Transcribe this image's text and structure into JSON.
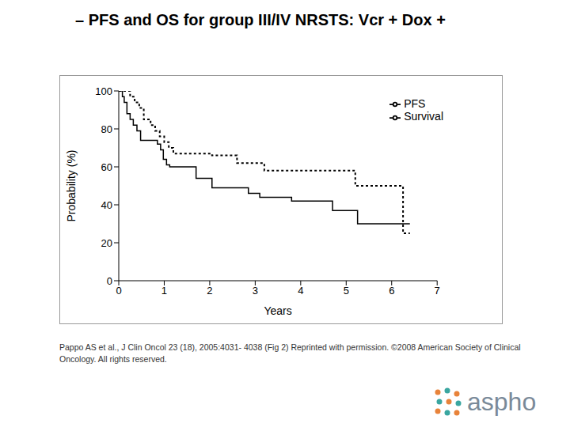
{
  "chart_data": {
    "type": "line",
    "title": "– PFS and OS for group III/IV NRSTS: Vcr + Dox +",
    "x_label": "Years",
    "y_label": "Probability (%)",
    "xlim": [
      0,
      7
    ],
    "xticks": [
      0,
      1,
      2,
      3,
      4,
      5,
      6,
      7
    ],
    "ylim": [
      0,
      100
    ],
    "yticks": [
      0,
      20,
      40,
      60,
      80,
      100
    ],
    "grid": false,
    "legend": "top right",
    "series": [
      {
        "name": "PFS",
        "color": "#000000",
        "line_style": "solid",
        "marker": "none",
        "x": [
          0,
          0.08,
          0.12,
          0.18,
          0.25,
          0.32,
          0.4,
          0.48,
          0.85,
          0.92,
          0.98,
          1.05,
          1.12,
          1.7,
          2.05,
          2.85,
          3.1,
          3.8,
          4.7,
          5.25,
          6.4
        ],
        "values": [
          100,
          97,
          94,
          88,
          85,
          82,
          79,
          74,
          72,
          69,
          64,
          61,
          60,
          54,
          49,
          46,
          44,
          42,
          37,
          30,
          30
        ]
      },
      {
        "name": "Survival",
        "color": "#000000",
        "line_style": "dotted",
        "marker": "none",
        "x": [
          0,
          0.25,
          0.35,
          0.45,
          0.55,
          0.7,
          0.8,
          0.9,
          1.0,
          1.1,
          1.2,
          1.45,
          2.05,
          2.6,
          3.2,
          5.2,
          6.25,
          6.4
        ],
        "values": [
          100,
          97,
          94,
          91,
          85,
          82,
          79,
          76,
          73,
          70,
          67,
          67,
          66,
          62,
          58,
          50,
          25,
          25
        ]
      }
    ],
    "annotations": [
      "Pappo AS et al., J Clin Oncol 23 (18), 2005:4031- 4038 (Fig 2) Reprinted with permission. ©2008 American Society of Clinical Oncology. All rights reserved.",
      "aspho"
    ]
  }
}
